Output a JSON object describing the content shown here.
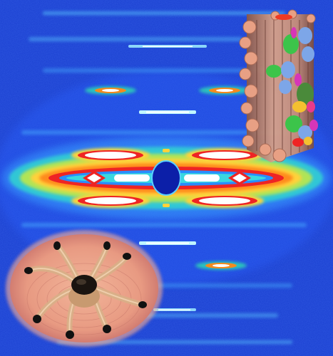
{
  "figure": {
    "background_color": "#1a3fd0",
    "panels": [
      {
        "id": "diffraction-pattern",
        "kind": "x-ray fiber diffraction pattern"
      },
      {
        "id": "filament-model",
        "kind": "3D surface rendering of a thick filament"
      },
      {
        "id": "tarantula-photo",
        "kind": "photograph of a small tarantula on a fingertip"
      }
    ],
    "palette": {
      "field_blue": "#1a3fd0",
      "deep_blue": "#0c1fa8",
      "cyan": "#43b8ff",
      "green": "#36e08a",
      "yellow": "#f4ec36",
      "orange": "#ff8a1e",
      "red": "#ee2424",
      "white": "#ffffff",
      "backbone_tan": "#d49a80",
      "myosin_green": "#3cc44a",
      "myosin_blue": "#7da6e8",
      "accent_magenta": "#d636b8"
    }
  }
}
